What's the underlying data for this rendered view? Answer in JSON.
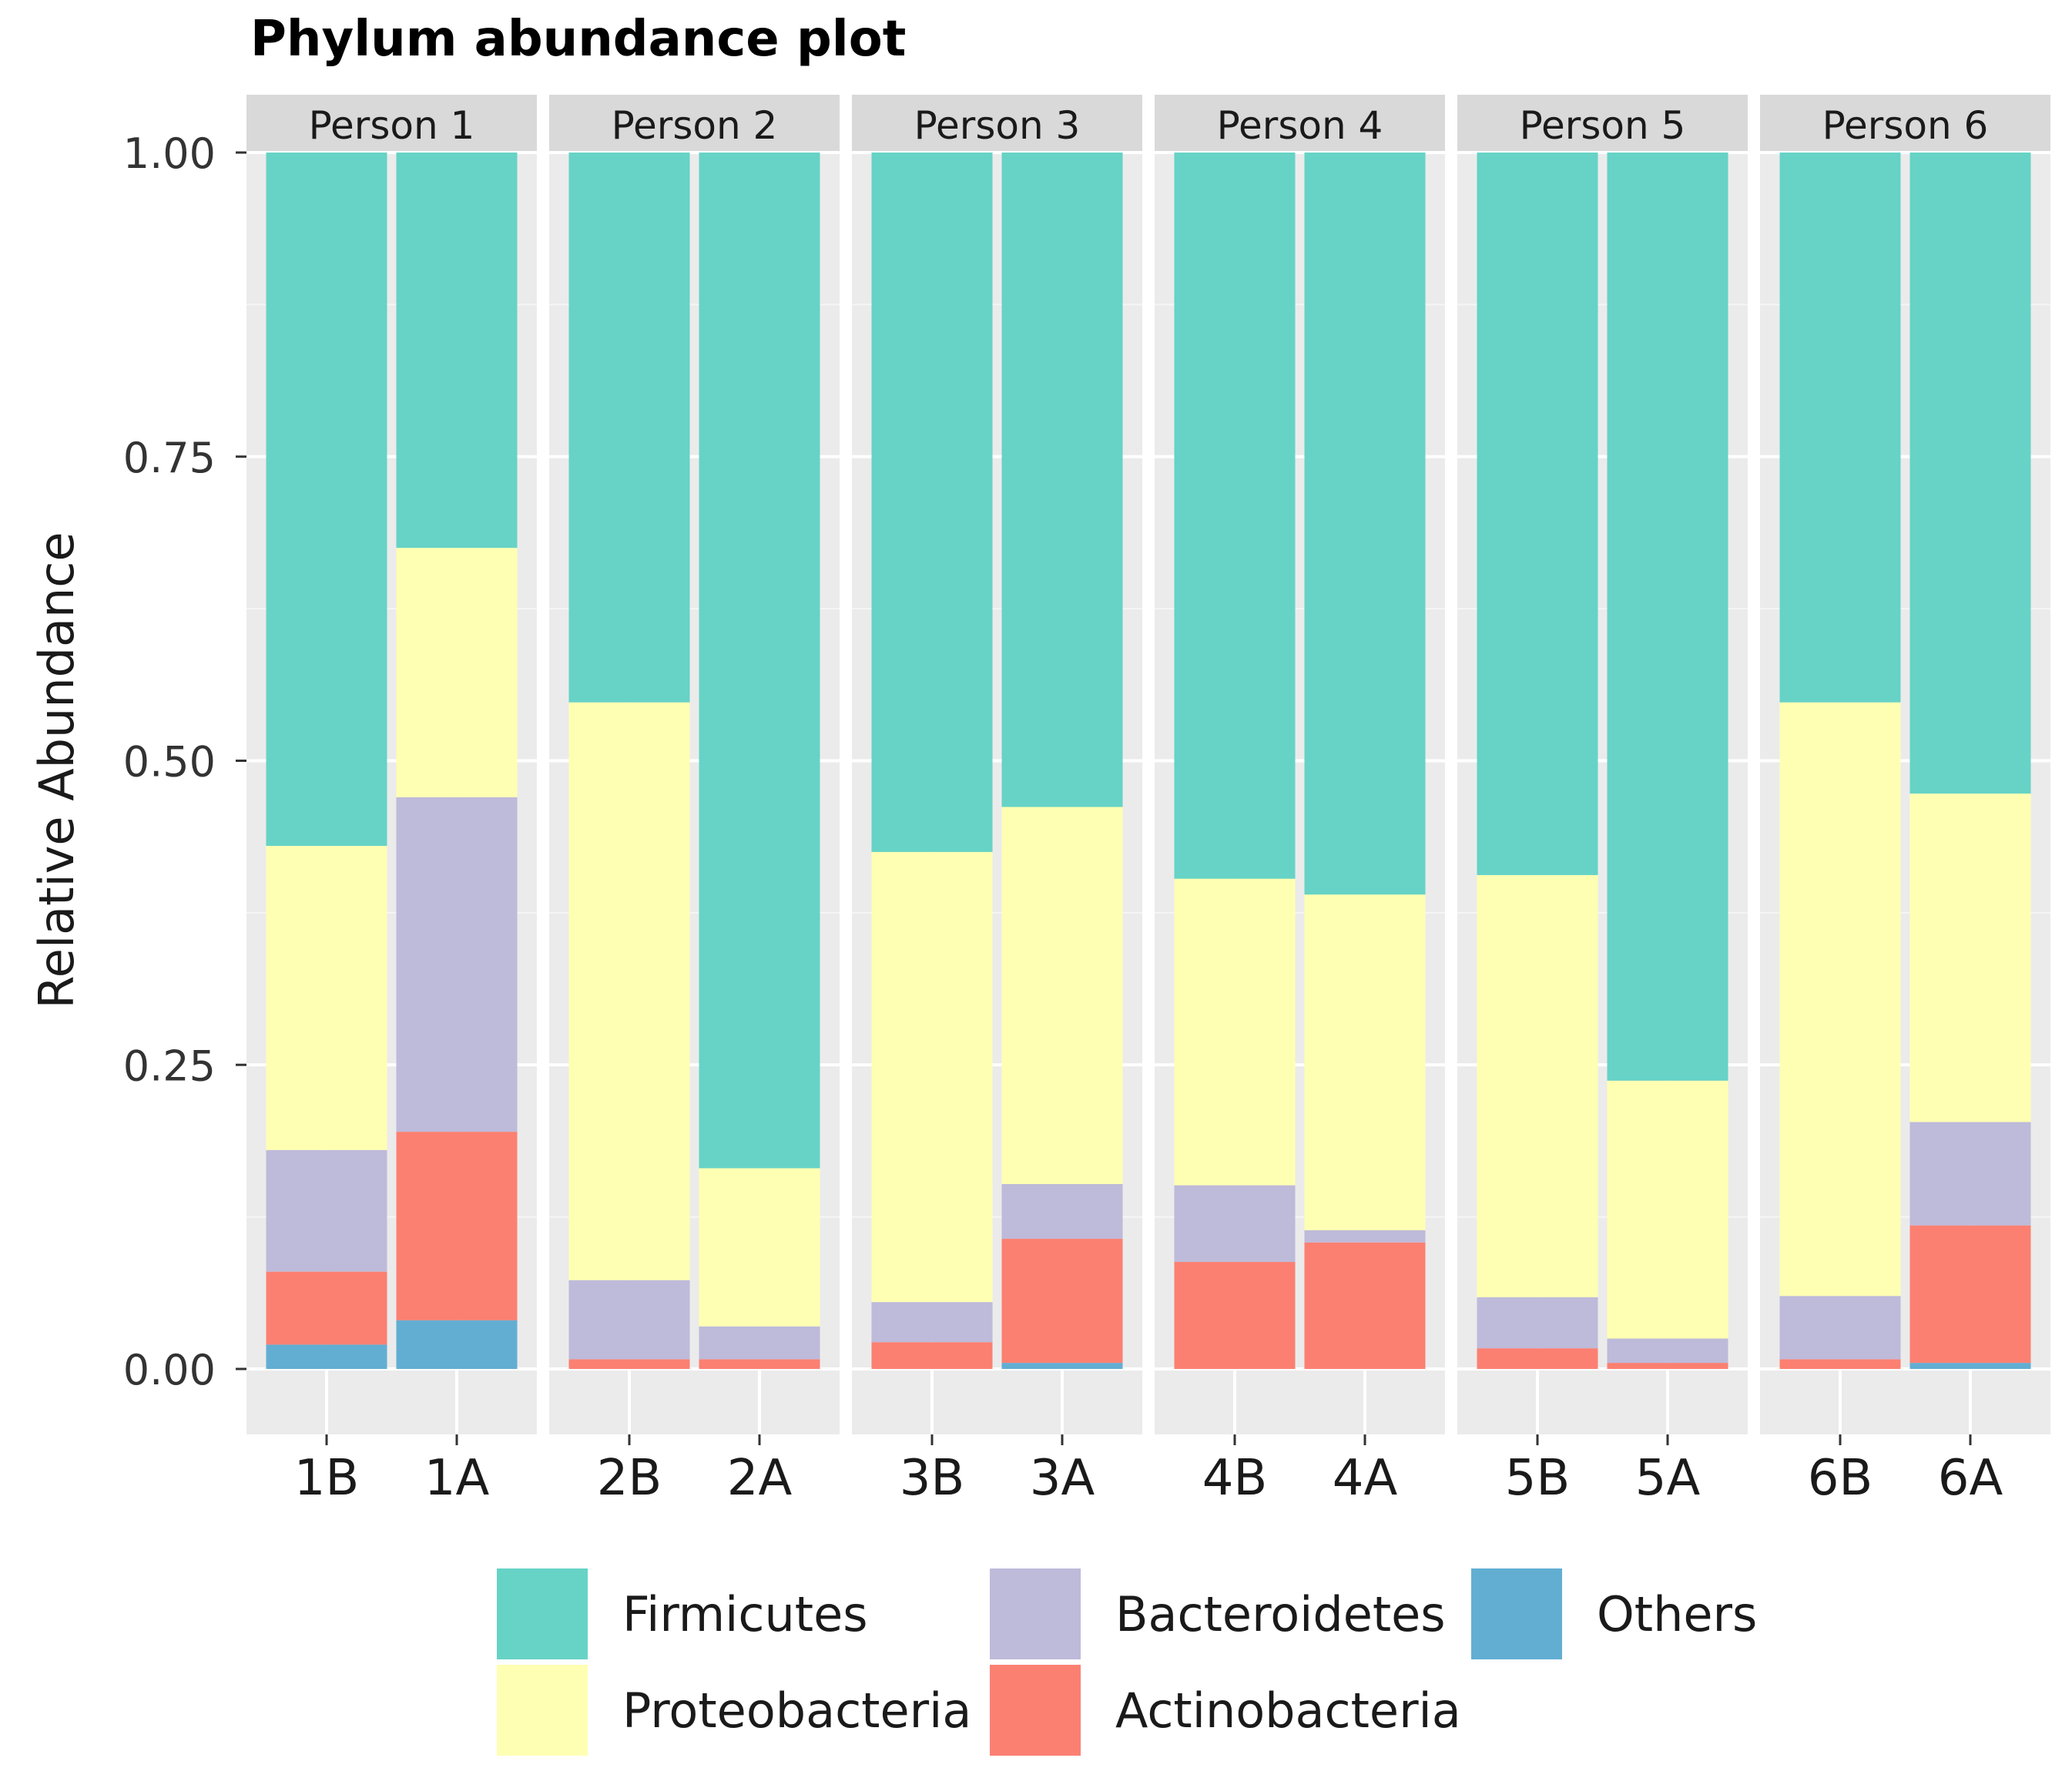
{
  "chart_data": {
    "type": "bar",
    "stacked": true,
    "faceted": true,
    "title": "Phylum abundance plot",
    "xlabel": "",
    "ylabel": "Relative Abundance",
    "ylim": [
      0,
      1
    ],
    "yticks": [
      "0.00",
      "0.25",
      "0.50",
      "0.75",
      "1.00"
    ],
    "ytick_values": [
      0,
      0.25,
      0.5,
      0.75,
      1.0
    ],
    "grid": true,
    "legend_position": "bottom",
    "stack_order": [
      "Others",
      "Actinobacteria",
      "Bacteroidetes",
      "Proteobacteria",
      "Firmicutes"
    ],
    "legend": [
      {
        "name": "Firmicutes",
        "color": "#66d3c6"
      },
      {
        "name": "Proteobacteria",
        "color": "#ffffb3"
      },
      {
        "name": "Bacteroidetes",
        "color": "#bebada"
      },
      {
        "name": "Actinobacteria",
        "color": "#fb8072"
      },
      {
        "name": "Others",
        "color": "#62aed3"
      }
    ],
    "panels": [
      {
        "label": "Person 1",
        "samples": [
          {
            "name": "1B",
            "values": {
              "Others": 0.02,
              "Actinobacteria": 0.06,
              "Bacteroidetes": 0.1,
              "Proteobacteria": 0.25,
              "Firmicutes": 0.57
            }
          },
          {
            "name": "1A",
            "values": {
              "Others": 0.04,
              "Actinobacteria": 0.155,
              "Bacteroidetes": 0.275,
              "Proteobacteria": 0.205,
              "Firmicutes": 0.325
            }
          }
        ]
      },
      {
        "label": "Person 2",
        "samples": [
          {
            "name": "2B",
            "values": {
              "Others": 0.0,
              "Actinobacteria": 0.008,
              "Bacteroidetes": 0.065,
              "Proteobacteria": 0.475,
              "Firmicutes": 0.452
            }
          },
          {
            "name": "2A",
            "values": {
              "Others": 0.0,
              "Actinobacteria": 0.008,
              "Bacteroidetes": 0.027,
              "Proteobacteria": 0.13,
              "Firmicutes": 0.835
            }
          }
        ]
      },
      {
        "label": "Person 3",
        "samples": [
          {
            "name": "3B",
            "values": {
              "Others": 0.0,
              "Actinobacteria": 0.022,
              "Bacteroidetes": 0.033,
              "Proteobacteria": 0.37,
              "Firmicutes": 0.575
            }
          },
          {
            "name": "3A",
            "values": {
              "Others": 0.005,
              "Actinobacteria": 0.102,
              "Bacteroidetes": 0.045,
              "Proteobacteria": 0.31,
              "Firmicutes": 0.538
            }
          }
        ]
      },
      {
        "label": "Person 4",
        "samples": [
          {
            "name": "4B",
            "values": {
              "Others": 0.0,
              "Actinobacteria": 0.088,
              "Bacteroidetes": 0.063,
              "Proteobacteria": 0.252,
              "Firmicutes": 0.597
            }
          },
          {
            "name": "4A",
            "values": {
              "Others": 0.0,
              "Actinobacteria": 0.104,
              "Bacteroidetes": 0.01,
              "Proteobacteria": 0.276,
              "Firmicutes": 0.61
            }
          }
        ]
      },
      {
        "label": "Person 5",
        "samples": [
          {
            "name": "5B",
            "values": {
              "Others": 0.0,
              "Actinobacteria": 0.017,
              "Bacteroidetes": 0.042,
              "Proteobacteria": 0.347,
              "Firmicutes": 0.594
            }
          },
          {
            "name": "5A",
            "values": {
              "Others": 0.0,
              "Actinobacteria": 0.005,
              "Bacteroidetes": 0.02,
              "Proteobacteria": 0.212,
              "Firmicutes": 0.763
            }
          }
        ]
      },
      {
        "label": "Person 6",
        "samples": [
          {
            "name": "6B",
            "values": {
              "Others": 0.0,
              "Actinobacteria": 0.008,
              "Bacteroidetes": 0.052,
              "Proteobacteria": 0.488,
              "Firmicutes": 0.452
            }
          },
          {
            "name": "6A",
            "values": {
              "Others": 0.005,
              "Actinobacteria": 0.113,
              "Bacteroidetes": 0.085,
              "Proteobacteria": 0.27,
              "Firmicutes": 0.527
            }
          }
        ]
      }
    ]
  }
}
